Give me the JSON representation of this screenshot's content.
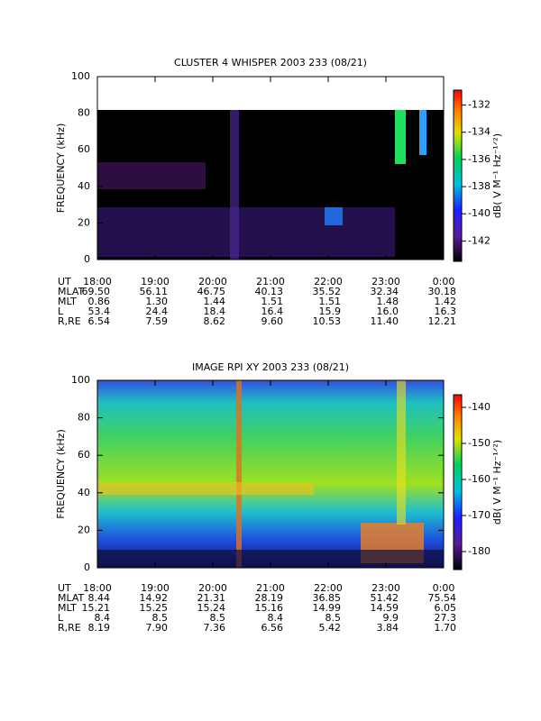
{
  "chart_data": [
    {
      "type": "spectrogram",
      "title": "CLUSTER 4 WHISPER 2003 233 (08/21)",
      "ylabel": "FREQUENCY (kHz)",
      "ylim": [
        0,
        100
      ],
      "yticks": [
        0,
        20,
        40,
        60,
        80,
        100
      ],
      "x_label": "UT",
      "xlim": [
        18,
        24
      ],
      "xticks": [
        {
          "value": 18,
          "label": "18:00"
        },
        {
          "value": 19,
          "label": "19:00"
        },
        {
          "value": 20,
          "label": "20:00"
        },
        {
          "value": 21,
          "label": "21:00"
        },
        {
          "value": 22,
          "label": "22:00"
        },
        {
          "value": 23,
          "label": "23:00"
        },
        {
          "value": 24,
          "label": "0:00"
        }
      ],
      "colorbar": {
        "label": "dB( V M⁻¹ Hz⁻¹ᐟ²)",
        "lim": [
          -143.5,
          -130.9
        ],
        "ticks": [
          -132,
          -134,
          -136,
          -138,
          -140,
          -142
        ]
      },
      "ephemeris": [
        {
          "name": "MLAT",
          "values": [
            "69.50",
            "56.11",
            "46.75",
            "40.13",
            "35.52",
            "32.34",
            "30.18"
          ]
        },
        {
          "name": "MLT",
          "values": [
            "0.86",
            "1.30",
            "1.44",
            "1.51",
            "1.51",
            "1.48",
            "1.42"
          ]
        },
        {
          "name": "L",
          "values": [
            "53.4",
            "24.4",
            "18.4",
            "16.4",
            "15.9",
            "16.0",
            "16.3"
          ]
        },
        {
          "name": "R,RE",
          "values": [
            "6.54",
            "7.59",
            "8.62",
            "9.60",
            "10.53",
            "11.40",
            "12.21"
          ]
        }
      ]
    },
    {
      "type": "spectrogram",
      "title": "IMAGE RPI XY 2003 233 (08/21)",
      "ylabel": "FREQUENCY (kHz)",
      "ylim": [
        0,
        100
      ],
      "yticks": [
        0,
        20,
        40,
        60,
        80,
        100
      ],
      "x_label": "UT",
      "xlim": [
        18,
        24
      ],
      "xticks": [
        {
          "value": 18,
          "label": "18:00"
        },
        {
          "value": 19,
          "label": "19:00"
        },
        {
          "value": 20,
          "label": "20:00"
        },
        {
          "value": 21,
          "label": "21:00"
        },
        {
          "value": 22,
          "label": "22:00"
        },
        {
          "value": 23,
          "label": "23:00"
        },
        {
          "value": 24,
          "label": "0:00"
        }
      ],
      "colorbar": {
        "label": "dB( V M⁻¹ Hz⁻¹ᐟ²)",
        "lim": [
          -185,
          -136.5
        ],
        "ticks": [
          -140,
          -150,
          -160,
          -170,
          -180
        ]
      },
      "ephemeris": [
        {
          "name": "MLAT",
          "values": [
            "8.44",
            "14.92",
            "21.31",
            "28.19",
            "36.85",
            "51.42",
            "75.54"
          ]
        },
        {
          "name": "MLT",
          "values": [
            "15.21",
            "15.25",
            "15.24",
            "15.16",
            "14.99",
            "14.59",
            "6.05"
          ]
        },
        {
          "name": "L",
          "values": [
            "8.4",
            "8.5",
            "8.5",
            "8.4",
            "8.5",
            "9.9",
            "27.3"
          ]
        },
        {
          "name": "R,RE",
          "values": [
            "8.19",
            "7.90",
            "7.36",
            "6.56",
            "5.42",
            "3.84",
            "1.70"
          ]
        }
      ]
    }
  ]
}
